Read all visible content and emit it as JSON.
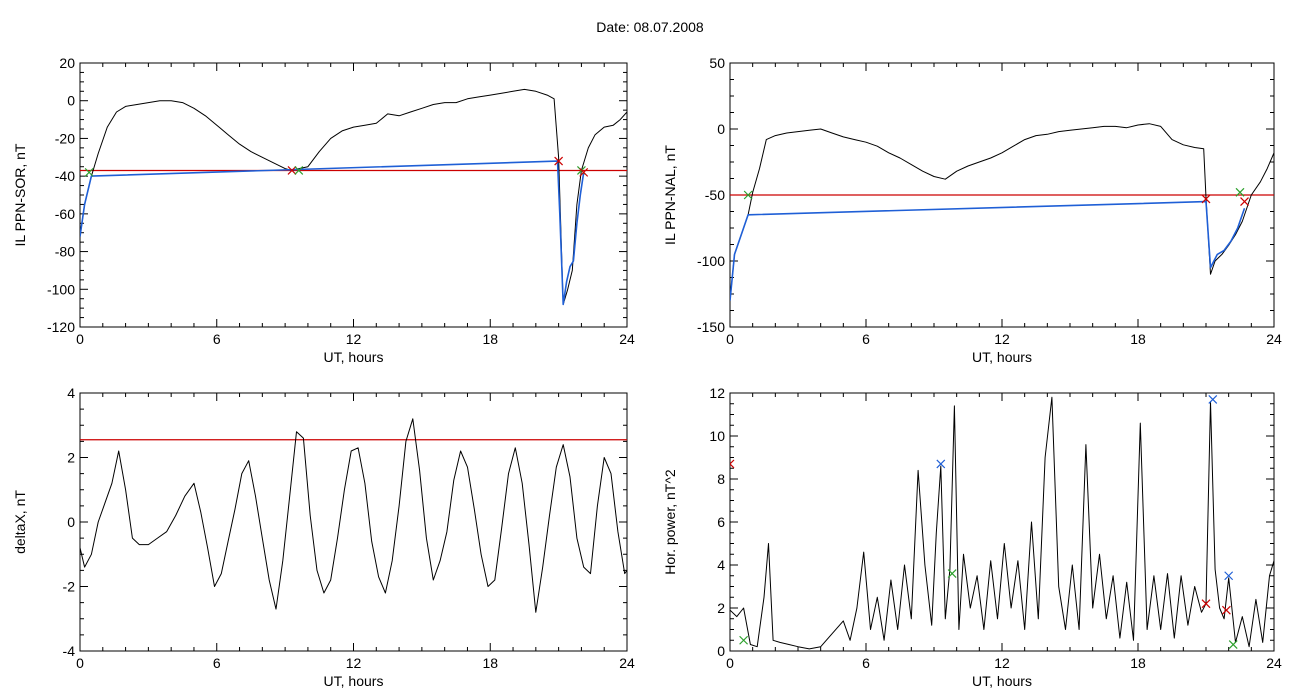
{
  "page": {
    "title": "Date:  08.07.2008"
  },
  "chart_data": [
    {
      "type": "line",
      "panel": "top-left",
      "title": "",
      "xlabel": "UT, hours",
      "ylabel": "IL PPN-SOR, nT",
      "xlim": [
        0,
        24
      ],
      "ylim": [
        -120,
        20
      ],
      "xticks": [
        0,
        6,
        12,
        18,
        24
      ],
      "yticks": [
        -120,
        -100,
        -80,
        -60,
        -40,
        -20,
        0,
        20
      ],
      "grid": false,
      "series": [
        {
          "color": "#000000",
          "x": [
            0,
            0.2,
            0.5,
            0.8,
            1.2,
            1.6,
            2.0,
            2.5,
            3.0,
            3.5,
            4.0,
            4.5,
            5.0,
            5.5,
            6.0,
            6.5,
            7.0,
            7.5,
            8.0,
            8.5,
            9.0,
            9.3,
            9.6,
            10.0,
            10.5,
            11.0,
            11.5,
            12.0,
            12.5,
            13.0,
            13.5,
            14.0,
            14.5,
            15.0,
            15.5,
            16.0,
            16.5,
            17.0,
            17.5,
            18.0,
            18.5,
            19.0,
            19.5,
            20.0,
            20.5,
            20.8,
            21.0,
            21.2,
            21.4,
            21.6,
            21.8,
            22.0,
            22.3,
            22.6,
            23.0,
            23.4,
            23.7,
            24.0
          ],
          "values": [
            -72,
            -55,
            -40,
            -28,
            -14,
            -6,
            -3,
            -2,
            -1,
            0,
            0,
            -1,
            -4,
            -8,
            -13,
            -18,
            -23,
            -27,
            -30,
            -33,
            -36,
            -37,
            -36,
            -35,
            -27,
            -20,
            -16,
            -14,
            -13,
            -12,
            -7,
            -8,
            -6,
            -4,
            -2,
            -1,
            -1,
            1,
            2,
            3,
            4,
            5,
            6,
            5,
            3,
            1,
            -30,
            -108,
            -100,
            -90,
            -55,
            -37,
            -25,
            -18,
            -14,
            -13,
            -10,
            -6
          ]
        },
        {
          "color": "#1f5fd6",
          "x": [
            0,
            0.2,
            0.5,
            20.95,
            21.05,
            21.2,
            21.35,
            21.5,
            21.65,
            21.8,
            21.95,
            22.1
          ],
          "values": [
            -72,
            -55,
            -40,
            -32,
            -60,
            -108,
            -96,
            -88,
            -85,
            -65,
            -50,
            -38
          ]
        }
      ],
      "threshold": {
        "value": -37,
        "color": "#cc0000"
      },
      "markers": [
        {
          "x": 0.4,
          "y": -38,
          "color": "#2ca02c",
          "symbol": "x"
        },
        {
          "x": 9.3,
          "y": -37,
          "color": "#cc0000",
          "symbol": "x"
        },
        {
          "x": 9.6,
          "y": -37,
          "color": "#2ca02c",
          "symbol": "x"
        },
        {
          "x": 21.0,
          "y": -32,
          "color": "#cc0000",
          "symbol": "x"
        },
        {
          "x": 22.0,
          "y": -37,
          "color": "#2ca02c",
          "symbol": "x"
        },
        {
          "x": 22.1,
          "y": -38,
          "color": "#cc0000",
          "symbol": "x"
        }
      ]
    },
    {
      "type": "line",
      "panel": "top-right",
      "title": "",
      "xlabel": "UT, hours",
      "ylabel": "IL PPN-NAL, nT",
      "xlim": [
        0,
        24
      ],
      "ylim": [
        -150,
        50
      ],
      "xticks": [
        0,
        6,
        12,
        18,
        24
      ],
      "yticks": [
        -150,
        -100,
        -50,
        0,
        50
      ],
      "grid": false,
      "series": [
        {
          "color": "#000000",
          "x": [
            0,
            0.2,
            0.5,
            0.8,
            1.0,
            1.3,
            1.6,
            2.0,
            2.5,
            3.0,
            3.5,
            4.0,
            4.5,
            5.0,
            5.5,
            6.0,
            6.5,
            7.0,
            7.5,
            8.0,
            8.5,
            9.0,
            9.5,
            10.0,
            10.5,
            11.0,
            11.5,
            12.0,
            12.5,
            13.0,
            13.5,
            14.0,
            14.5,
            15.0,
            15.5,
            16.0,
            16.5,
            17.0,
            17.5,
            18.0,
            18.5,
            19.0,
            19.5,
            20.0,
            20.5,
            20.9,
            21.0,
            21.2,
            21.4,
            21.7,
            22.0,
            22.3,
            22.6,
            23.0,
            23.4,
            23.7,
            24.0
          ],
          "values": [
            -130,
            -95,
            -80,
            -65,
            -48,
            -30,
            -8,
            -5,
            -3,
            -2,
            -1,
            0,
            -3,
            -6,
            -8,
            -10,
            -13,
            -18,
            -22,
            -27,
            -32,
            -36,
            -38,
            -32,
            -28,
            -25,
            -22,
            -18,
            -13,
            -8,
            -5,
            -4,
            -2,
            -1,
            0,
            1,
            2,
            2,
            1,
            3,
            4,
            2,
            -8,
            -12,
            -14,
            -15,
            -52,
            -110,
            -100,
            -95,
            -88,
            -80,
            -70,
            -50,
            -40,
            -30,
            -18
          ]
        },
        {
          "color": "#1f5fd6",
          "x": [
            0,
            0.2,
            0.5,
            0.8,
            21.0,
            21.2,
            21.5,
            21.8,
            22.1,
            22.4,
            22.7
          ],
          "values": [
            -130,
            -95,
            -80,
            -65,
            -55,
            -105,
            -95,
            -92,
            -85,
            -75,
            -60
          ]
        }
      ],
      "threshold": {
        "value": -50,
        "color": "#cc0000"
      },
      "markers": [
        {
          "x": 0.8,
          "y": -50,
          "color": "#2ca02c",
          "symbol": "x"
        },
        {
          "x": 21.0,
          "y": -53,
          "color": "#cc0000",
          "symbol": "x"
        },
        {
          "x": 22.5,
          "y": -48,
          "color": "#2ca02c",
          "symbol": "x"
        },
        {
          "x": 22.7,
          "y": -55,
          "color": "#cc0000",
          "symbol": "x"
        }
      ]
    },
    {
      "type": "line",
      "panel": "bottom-left",
      "title": "",
      "xlabel": "UT, hours",
      "ylabel": "deltaX, nT",
      "xlim": [
        0,
        24
      ],
      "ylim": [
        -4,
        4
      ],
      "xticks": [
        0,
        6,
        12,
        18,
        24
      ],
      "yticks": [
        -4,
        -2,
        0,
        2,
        4
      ],
      "grid": false,
      "series": [
        {
          "color": "#000000",
          "x": [
            0,
            0.2,
            0.5,
            0.8,
            1.1,
            1.4,
            1.7,
            2.0,
            2.3,
            2.6,
            3.0,
            3.4,
            3.8,
            4.2,
            4.6,
            5.0,
            5.3,
            5.6,
            5.9,
            6.2,
            6.5,
            6.8,
            7.1,
            7.4,
            7.7,
            8.0,
            8.3,
            8.6,
            8.9,
            9.2,
            9.5,
            9.8,
            10.1,
            10.4,
            10.7,
            11.0,
            11.3,
            11.6,
            11.9,
            12.2,
            12.5,
            12.8,
            13.1,
            13.4,
            13.7,
            14.0,
            14.3,
            14.6,
            14.9,
            15.2,
            15.5,
            15.8,
            16.1,
            16.4,
            16.7,
            17.0,
            17.3,
            17.6,
            17.9,
            18.2,
            18.5,
            18.8,
            19.1,
            19.4,
            19.7,
            20.0,
            20.3,
            20.6,
            20.9,
            21.2,
            21.5,
            21.8,
            22.1,
            22.4,
            22.7,
            23.0,
            23.3,
            23.6,
            23.9,
            24.0
          ],
          "values": [
            -0.8,
            -1.4,
            -1.0,
            0.0,
            0.6,
            1.2,
            2.2,
            1.0,
            -0.5,
            -0.7,
            -0.7,
            -0.5,
            -0.3,
            0.2,
            0.8,
            1.2,
            0.3,
            -0.8,
            -2.0,
            -1.6,
            -0.6,
            0.4,
            1.5,
            1.9,
            0.8,
            -0.5,
            -1.8,
            -2.7,
            -1.2,
            0.8,
            2.8,
            2.6,
            0.2,
            -1.5,
            -2.2,
            -1.8,
            -0.5,
            1.0,
            2.2,
            2.3,
            1.2,
            -0.6,
            -1.7,
            -2.2,
            -1.2,
            0.5,
            2.5,
            3.2,
            1.6,
            -0.5,
            -1.8,
            -1.2,
            -0.3,
            1.3,
            2.2,
            1.7,
            0.4,
            -1.0,
            -2.0,
            -1.8,
            -0.2,
            1.5,
            2.3,
            1.2,
            -0.7,
            -2.8,
            -1.4,
            0.2,
            1.7,
            2.4,
            1.4,
            -0.5,
            -1.4,
            -1.6,
            0.5,
            2.0,
            1.5,
            -0.3,
            -1.6,
            -1.5
          ]
        }
      ],
      "threshold": {
        "value": 2.55,
        "color": "#cc0000"
      },
      "markers": []
    },
    {
      "type": "line",
      "panel": "bottom-right",
      "title": "",
      "xlabel": "UT, hours",
      "ylabel": "Hor. power, nT^2",
      "xlim": [
        0,
        24
      ],
      "ylim": [
        0,
        12
      ],
      "xticks": [
        0,
        6,
        12,
        18,
        24
      ],
      "yticks": [
        0,
        2,
        4,
        6,
        8,
        10,
        12
      ],
      "grid": false,
      "series": [
        {
          "color": "#000000",
          "x": [
            0,
            0.3,
            0.6,
            0.9,
            1.2,
            1.5,
            1.7,
            1.9,
            2.2,
            2.6,
            3.0,
            3.5,
            4.0,
            4.5,
            5.0,
            5.3,
            5.6,
            5.9,
            6.2,
            6.5,
            6.8,
            7.1,
            7.4,
            7.7,
            8.0,
            8.3,
            8.6,
            8.9,
            9.1,
            9.3,
            9.5,
            9.7,
            9.9,
            10.1,
            10.3,
            10.6,
            10.9,
            11.2,
            11.5,
            11.8,
            12.1,
            12.4,
            12.7,
            13.0,
            13.3,
            13.6,
            13.9,
            14.2,
            14.5,
            14.8,
            15.1,
            15.4,
            15.7,
            16.0,
            16.3,
            16.6,
            16.9,
            17.2,
            17.5,
            17.8,
            18.1,
            18.4,
            18.7,
            19.0,
            19.3,
            19.6,
            19.9,
            20.2,
            20.5,
            20.8,
            21.0,
            21.2,
            21.4,
            21.6,
            21.8,
            22.0,
            22.3,
            22.6,
            22.9,
            23.2,
            23.5,
            23.8,
            24.0
          ],
          "values": [
            1.9,
            1.6,
            2.0,
            0.3,
            0.2,
            2.5,
            5.0,
            0.5,
            0.4,
            0.3,
            0.2,
            0.1,
            0.2,
            0.8,
            1.4,
            0.5,
            2.0,
            4.6,
            1.0,
            2.5,
            0.5,
            3.3,
            1.0,
            4.0,
            1.5,
            8.4,
            4.0,
            1.2,
            5.5,
            8.6,
            1.5,
            3.8,
            11.4,
            1.0,
            4.5,
            2.0,
            3.5,
            1.0,
            4.2,
            1.5,
            5.0,
            2.0,
            4.2,
            1.0,
            6.0,
            1.5,
            9.0,
            11.8,
            3.0,
            1.0,
            4.0,
            1.0,
            9.6,
            2.0,
            4.5,
            1.5,
            3.5,
            0.6,
            3.2,
            0.5,
            10.6,
            1.0,
            3.5,
            1.0,
            3.6,
            0.6,
            3.5,
            1.2,
            3.0,
            1.8,
            2.2,
            11.6,
            3.8,
            2.0,
            1.5,
            3.4,
            0.4,
            1.6,
            0.2,
            2.4,
            0.4,
            3.5,
            4.2
          ]
        }
      ],
      "threshold": null,
      "markers": [
        {
          "x": 0.0,
          "y": 8.7,
          "color": "#cc0000",
          "symbol": "x"
        },
        {
          "x": 0.6,
          "y": 0.5,
          "color": "#2ca02c",
          "symbol": "x"
        },
        {
          "x": 9.3,
          "y": 8.7,
          "color": "#1f5fd6",
          "symbol": "x"
        },
        {
          "x": 9.8,
          "y": 3.6,
          "color": "#2ca02c",
          "symbol": "x"
        },
        {
          "x": 21.0,
          "y": 2.2,
          "color": "#cc0000",
          "symbol": "x"
        },
        {
          "x": 21.3,
          "y": 11.7,
          "color": "#1f5fd6",
          "symbol": "x"
        },
        {
          "x": 22.0,
          "y": 3.5,
          "color": "#1f5fd6",
          "symbol": "x"
        },
        {
          "x": 22.2,
          "y": 0.3,
          "color": "#2ca02c",
          "symbol": "x"
        },
        {
          "x": 21.9,
          "y": 1.9,
          "color": "#cc0000",
          "symbol": "x"
        }
      ]
    }
  ]
}
